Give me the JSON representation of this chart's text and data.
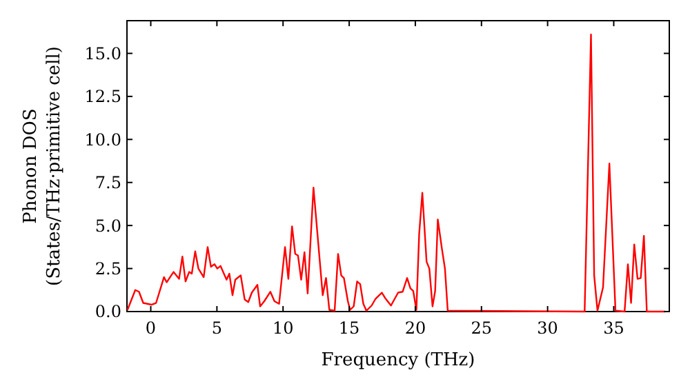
{
  "chart_data": {
    "type": "line",
    "xlabel": "Frequency (THz)",
    "ylabel": "Phonon DOS\n(States/THz·primitive cell)",
    "xlim": [
      -1.8,
      39.2
    ],
    "ylim": [
      0,
      16.9
    ],
    "xticks": [
      0,
      5,
      10,
      15,
      20,
      25,
      30,
      35
    ],
    "yticks": [
      {
        "value": 0,
        "label": "0.0"
      },
      {
        "value": 2.5,
        "label": "2.5"
      },
      {
        "value": 5,
        "label": "5.0"
      },
      {
        "value": 7.5,
        "label": "7.5"
      },
      {
        "value": 10,
        "label": "10.0"
      },
      {
        "value": 12.5,
        "label": "12.5"
      },
      {
        "value": 15,
        "label": "15.0"
      }
    ],
    "grid": false,
    "series": [
      {
        "color": "#ff0000",
        "x": [
          -1.76,
          -1.17,
          -0.89,
          -0.57,
          0.05,
          0.4,
          1.0,
          1.2,
          1.72,
          2.14,
          2.39,
          2.63,
          2.9,
          3.1,
          3.36,
          3.6,
          4.0,
          4.3,
          4.55,
          4.82,
          5.03,
          5.27,
          5.73,
          5.94,
          6.18,
          6.39,
          6.8,
          7.1,
          7.37,
          7.64,
          8.06,
          8.27,
          8.58,
          9.04,
          9.35,
          9.7,
          10.15,
          10.4,
          10.68,
          10.92,
          11.13,
          11.37,
          11.62,
          11.86,
          12.3,
          13.0,
          13.25,
          13.5,
          13.9,
          14.16,
          14.4,
          14.6,
          14.9,
          15.07,
          15.34,
          15.6,
          15.83,
          16.07,
          16.3,
          16.7,
          17.0,
          17.47,
          17.75,
          18.16,
          18.7,
          19.04,
          19.38,
          19.63,
          19.84,
          20.08,
          20.29,
          20.53,
          20.85,
          21.06,
          21.3,
          21.5,
          21.7,
          22.0,
          22.24,
          22.45,
          32.8,
          33.28,
          33.52,
          33.77,
          34.19,
          34.67,
          35.13,
          35.82,
          36.07,
          36.31,
          36.55,
          36.8,
          37.04,
          37.28,
          37.5,
          38.9
        ],
        "values": [
          0.1,
          1.25,
          1.15,
          0.5,
          0.4,
          0.5,
          2.0,
          1.7,
          2.3,
          1.9,
          3.2,
          1.75,
          2.3,
          2.2,
          3.5,
          2.5,
          2.0,
          3.75,
          2.6,
          2.75,
          2.5,
          2.65,
          1.85,
          2.2,
          0.95,
          1.85,
          2.1,
          0.7,
          0.55,
          1.1,
          1.55,
          0.3,
          0.6,
          1.15,
          0.6,
          0.45,
          3.75,
          1.9,
          4.95,
          3.35,
          3.25,
          1.85,
          3.45,
          1.05,
          7.2,
          0.95,
          1.95,
          0.1,
          0.05,
          3.35,
          2.1,
          1.95,
          0.6,
          0.1,
          0.3,
          1.75,
          1.6,
          0.45,
          0.05,
          0.35,
          0.75,
          1.1,
          0.75,
          0.35,
          1.1,
          1.15,
          1.95,
          1.35,
          1.2,
          0.1,
          4.5,
          6.9,
          2.9,
          2.5,
          0.3,
          1.2,
          5.35,
          3.7,
          2.5,
          0.05,
          0,
          16.1,
          2.1,
          0.05,
          1.4,
          8.6,
          0.05,
          0,
          2.75,
          0.5,
          3.9,
          1.9,
          1.95,
          4.4,
          0,
          0
        ]
      }
    ]
  }
}
